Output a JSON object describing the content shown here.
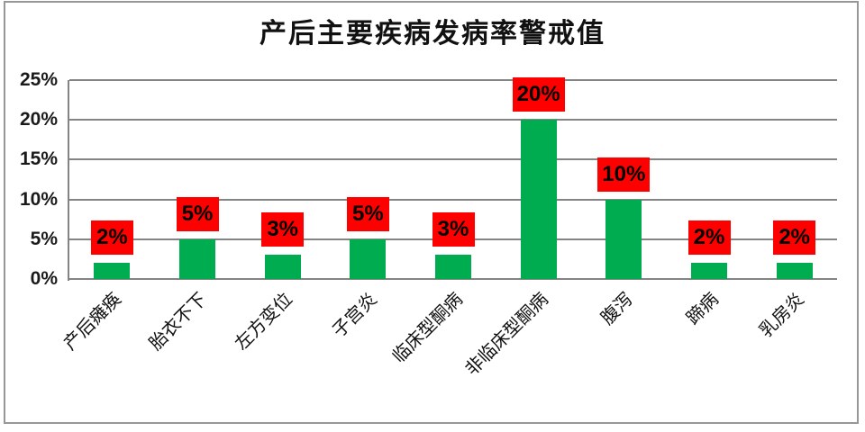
{
  "chart_data": {
    "type": "bar",
    "title": "产后主要疾病发病率警戒值",
    "categories": [
      "产后瘫痪",
      "胎衣不下",
      "左方变位",
      "子宫炎",
      "临床型酮病",
      "非临床型酮病",
      "腹泻",
      "蹄病",
      "乳房炎"
    ],
    "values": [
      2,
      5,
      3,
      5,
      3,
      20,
      10,
      2,
      2
    ],
    "labels": [
      "2%",
      "5%",
      "3%",
      "5%",
      "3%",
      "20%",
      "10%",
      "2%",
      "2%"
    ],
    "xlabel": "",
    "ylabel": "",
    "ylim": [
      0,
      25
    ],
    "ytick_values": [
      0,
      5,
      10,
      15,
      20,
      25
    ],
    "yticks": [
      "0%",
      "5%",
      "10%",
      "15%",
      "20%",
      "25%"
    ],
    "grid": true,
    "legend": "none",
    "bar_color": "#00AC50",
    "data_label_bg": "#FF0000",
    "data_label_text_color": "#000000",
    "gridline_color": "#848484",
    "frame_border_color": "#979797",
    "background_color": "#FFFFFF"
  }
}
